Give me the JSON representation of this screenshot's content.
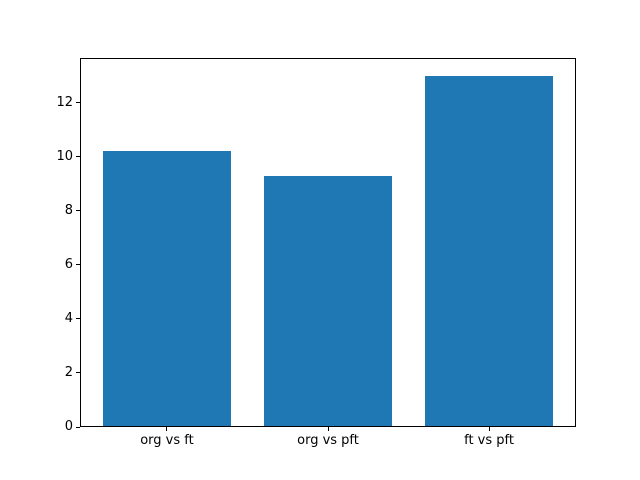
{
  "chart_data": {
    "type": "bar",
    "title": "",
    "categories": [
      "org vs ft",
      "org vs pft",
      "ft vs pft"
    ],
    "values": [
      10.2,
      9.3,
      13.0
    ],
    "bar_color": "#1f77b4",
    "xlabel": "",
    "ylabel": "",
    "ylim": [
      0,
      13.65
    ],
    "yticks": [
      0,
      2,
      4,
      6,
      8,
      10,
      12
    ],
    "bar_width": 0.8,
    "grid": false,
    "legend": "none",
    "spine_color": "#000000",
    "background": "#ffffff"
  }
}
